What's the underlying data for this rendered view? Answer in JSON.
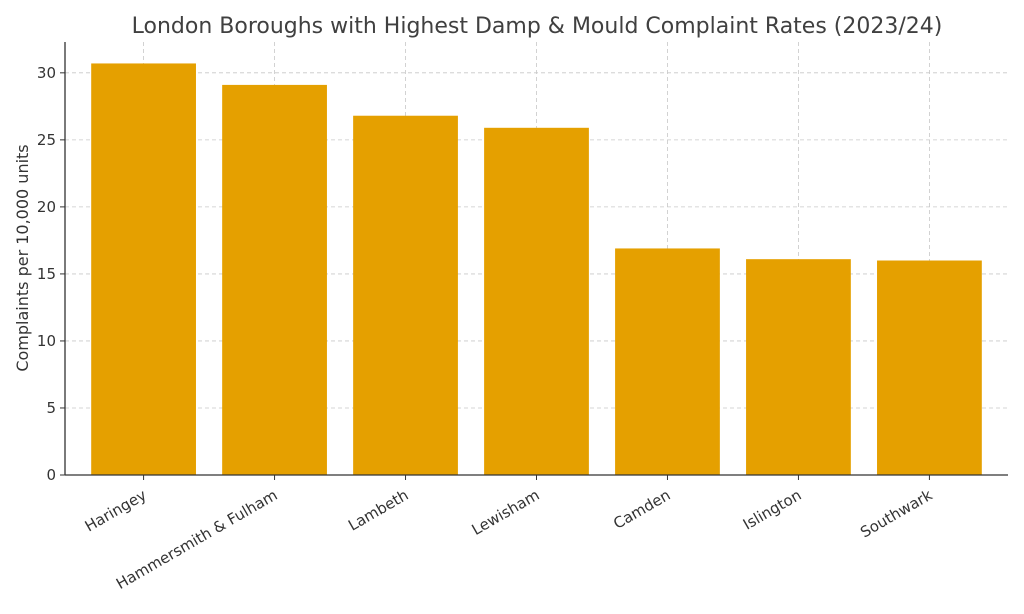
{
  "chart_data": {
    "type": "bar",
    "title": "London Boroughs with Highest Damp & Mould Complaint Rates (2023/24)",
    "xlabel": "",
    "ylabel": "Complaints per 10,000 units",
    "categories": [
      "Haringey",
      "Hammersmith & Fulham",
      "Lambeth",
      "Lewisham",
      "Camden",
      "Islington",
      "Southwark"
    ],
    "values": [
      30.7,
      29.1,
      26.8,
      25.9,
      16.9,
      16.1,
      16.0
    ],
    "ylim": [
      0,
      32.3
    ],
    "yticks": [
      0,
      5,
      10,
      15,
      20,
      25,
      30
    ],
    "grid": true,
    "bar_color": "#e5a000",
    "x_tick_rotation": 30
  }
}
